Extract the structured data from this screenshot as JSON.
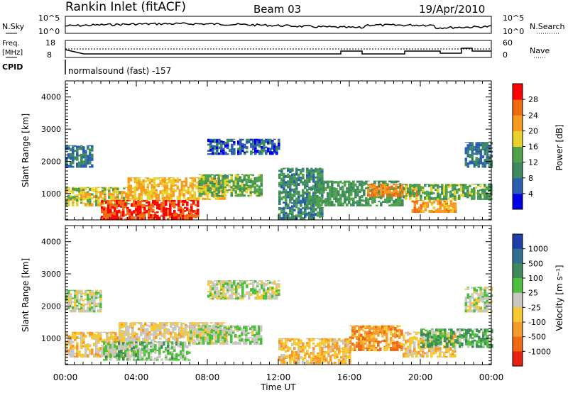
{
  "header": {
    "title": "Rankin Inlet (fitACF)",
    "beam": "Beam 03",
    "date": "19/Apr/2010"
  },
  "sky_panel": {
    "left_label": "N.Sky",
    "left_ticks": [
      "10^5",
      "10^0"
    ],
    "right_ticks": [
      "10^5",
      "10^0"
    ],
    "right_label": "N.Search"
  },
  "freq_panel": {
    "left_label_line1": "Freq.",
    "left_label_line2": "[MHz]",
    "left_ticks": [
      "18",
      "8"
    ],
    "right_ticks": [
      "60",
      "0"
    ],
    "right_label": "Nave",
    "cpid_label": "CPID",
    "cpid_text": "normalsound (fast) -157"
  },
  "time_ticks": [
    "00:00",
    "04:00",
    "08:00",
    "12:00",
    "16:00",
    "20:00",
    "00:00"
  ],
  "xlabel": "Time UT",
  "power_colorbar": {
    "label": "Power [dB]",
    "ticks": [
      "28",
      "24",
      "20",
      "16",
      "12",
      "8",
      "4"
    ],
    "colors": [
      "#0000e6",
      "#2a5fb0",
      "#3d8a5c",
      "#4fa24c",
      "#e8d22a",
      "#f79a1e",
      "#f06a10",
      "#ff0000"
    ]
  },
  "velocity_colorbar": {
    "label": "Velocity [m s⁻¹]",
    "ticks": [
      "1000",
      "500",
      "100",
      "25",
      "-25",
      "-100",
      "-500",
      "-1000"
    ],
    "colors": [
      "#1f3fa8",
      "#2f6f8f",
      "#3e8a5a",
      "#4cbf3c",
      "#c8c8c0",
      "#f8c832",
      "#f69a2c",
      "#f06a14",
      "#e82010"
    ]
  },
  "chart_data": [
    {
      "type": "heatmap",
      "panel": "power",
      "ylabel": "Slant Range [km]",
      "ytick_labels": [
        "1000",
        "2000",
        "3000",
        "4000"
      ],
      "ylim": [
        180,
        4500
      ],
      "xlim_hours": [
        0,
        24
      ],
      "colorbar_label": "Power [dB]",
      "colorbar_range": [
        0,
        32
      ],
      "regions": [
        {
          "t_start": 0.0,
          "t_end": 3.5,
          "r_min": 600,
          "r_max": 1200,
          "value": 18
        },
        {
          "t_start": 0.0,
          "t_end": 1.5,
          "r_min": 1800,
          "r_max": 2500,
          "value": 8
        },
        {
          "t_start": 2.0,
          "t_end": 7.5,
          "r_min": 180,
          "r_max": 800,
          "value": 28
        },
        {
          "t_start": 3.5,
          "t_end": 9.0,
          "r_min": 800,
          "r_max": 1500,
          "value": 20
        },
        {
          "t_start": 7.5,
          "t_end": 11.0,
          "r_min": 900,
          "r_max": 1600,
          "value": 14
        },
        {
          "t_start": 8.0,
          "t_end": 12.0,
          "r_min": 2200,
          "r_max": 2700,
          "value": 6
        },
        {
          "t_start": 12.0,
          "t_end": 14.5,
          "r_min": 180,
          "r_max": 1800,
          "value": 10
        },
        {
          "t_start": 14.0,
          "t_end": 19.0,
          "r_min": 600,
          "r_max": 1400,
          "value": 12
        },
        {
          "t_start": 17.0,
          "t_end": 20.0,
          "r_min": 900,
          "r_max": 1300,
          "value": 24
        },
        {
          "t_start": 19.5,
          "t_end": 22.0,
          "r_min": 400,
          "r_max": 800,
          "value": 22
        },
        {
          "t_start": 19.0,
          "t_end": 24.0,
          "r_min": 800,
          "r_max": 1300,
          "value": 14
        },
        {
          "t_start": 22.5,
          "t_end": 24.0,
          "r_min": 1800,
          "r_max": 2600,
          "value": 8
        }
      ]
    },
    {
      "type": "heatmap",
      "panel": "velocity",
      "ylabel": "Slant Range [km]",
      "ytick_labels": [
        "1000",
        "2000",
        "3000",
        "4000"
      ],
      "ylim": [
        180,
        4500
      ],
      "xlim_hours": [
        0,
        24
      ],
      "xlabel": "Time UT",
      "colorbar_label": "Velocity [m s⁻¹]",
      "colorbar_range": [
        -1000,
        1000
      ],
      "regions": [
        {
          "t_start": 0.0,
          "t_end": 2.0,
          "r_min": 1800,
          "r_max": 2500,
          "value": 0
        },
        {
          "t_start": 0.0,
          "t_end": 4.0,
          "r_min": 400,
          "r_max": 1200,
          "value": -200
        },
        {
          "t_start": 2.0,
          "t_end": 7.0,
          "r_min": 300,
          "r_max": 900,
          "value": 150
        },
        {
          "t_start": 3.0,
          "t_end": 9.0,
          "r_min": 900,
          "r_max": 1500,
          "value": -150
        },
        {
          "t_start": 8.0,
          "t_end": 12.0,
          "r_min": 2200,
          "r_max": 2800,
          "value": 0
        },
        {
          "t_start": 7.0,
          "t_end": 11.0,
          "r_min": 800,
          "r_max": 1400,
          "value": 80
        },
        {
          "t_start": 12.0,
          "t_end": 16.0,
          "r_min": 200,
          "r_max": 1000,
          "value": -300
        },
        {
          "t_start": 16.0,
          "t_end": 19.0,
          "r_min": 600,
          "r_max": 1400,
          "value": -500
        },
        {
          "t_start": 19.0,
          "t_end": 22.0,
          "r_min": 400,
          "r_max": 1200,
          "value": -200
        },
        {
          "t_start": 20.0,
          "t_end": 24.0,
          "r_min": 700,
          "r_max": 1300,
          "value": 300
        },
        {
          "t_start": 22.5,
          "t_end": 24.0,
          "r_min": 1800,
          "r_max": 2600,
          "value": 0
        }
      ]
    }
  ]
}
